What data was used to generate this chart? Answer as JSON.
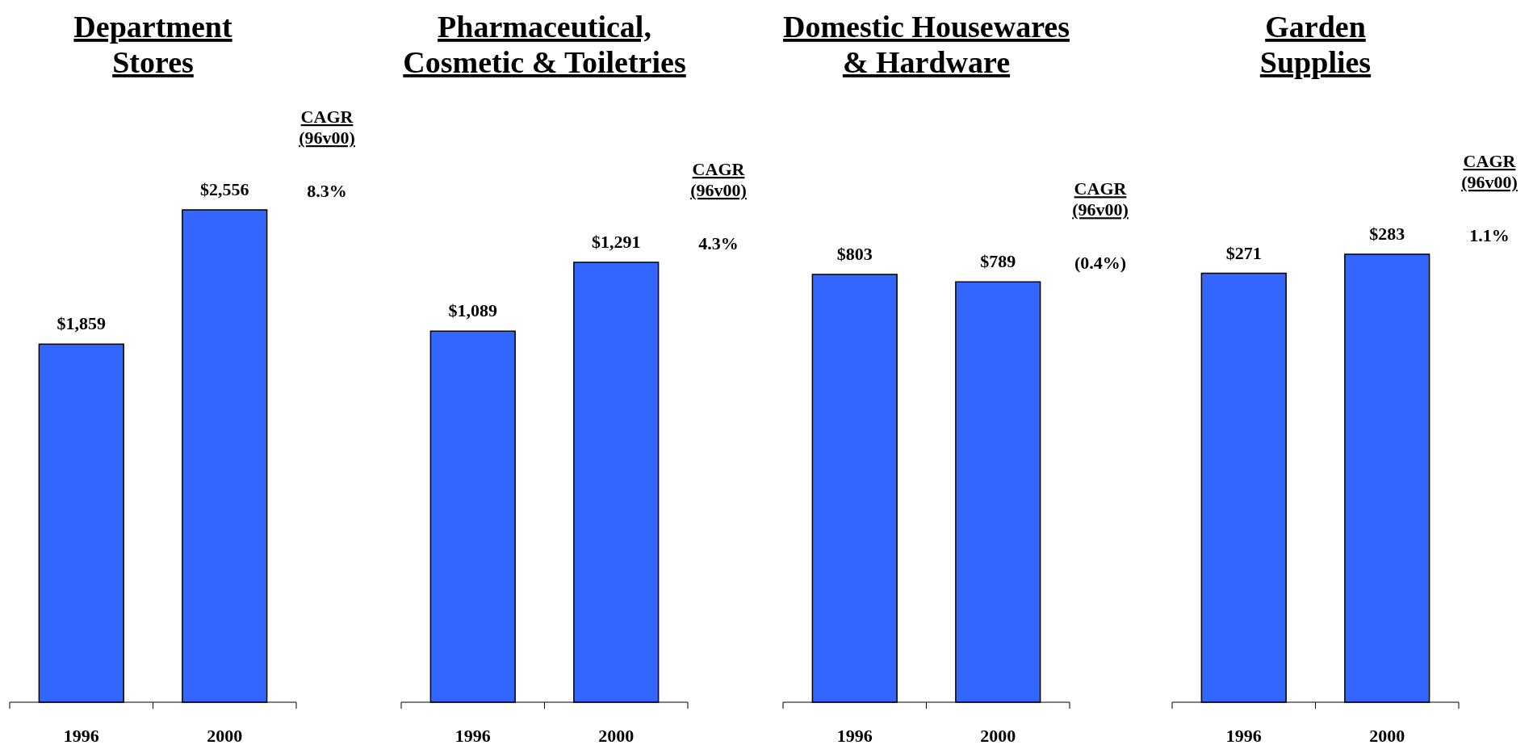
{
  "chart_data": [
    {
      "type": "bar",
      "title": "Department\nStores",
      "categories": [
        "1996",
        "2000"
      ],
      "values": [
        1859,
        2556
      ],
      "value_labels": [
        "$1,859",
        "$2,556"
      ],
      "color": "#3366ff",
      "annotations": [
        "CAGR\n(96v00)",
        "8.3%"
      ]
    },
    {
      "type": "bar",
      "title": "Pharmaceutical,\nCosmetic & Toiletries",
      "categories": [
        "1996",
        "2000"
      ],
      "values": [
        1089,
        1291
      ],
      "value_labels": [
        "$1,089",
        "$1,291"
      ],
      "color": "#3366ff",
      "annotations": [
        "CAGR\n(96v00)",
        "4.3%"
      ]
    },
    {
      "type": "bar",
      "title": "Domestic Housewares\n& Hardware",
      "categories": [
        "1996",
        "2000"
      ],
      "values": [
        803,
        789
      ],
      "value_labels": [
        "$803",
        "$789"
      ],
      "color": "#3366ff",
      "annotations": [
        "CAGR\n(96v00)",
        "(0.4%)"
      ]
    },
    {
      "type": "bar",
      "title": "Garden\nSupplies",
      "categories": [
        "1996",
        "2000"
      ],
      "values": [
        271,
        283
      ],
      "value_labels": [
        "$271",
        "$283"
      ],
      "color": "#3366ff",
      "annotations": [
        "CAGR\n(96v00)",
        "1.1%"
      ]
    }
  ]
}
